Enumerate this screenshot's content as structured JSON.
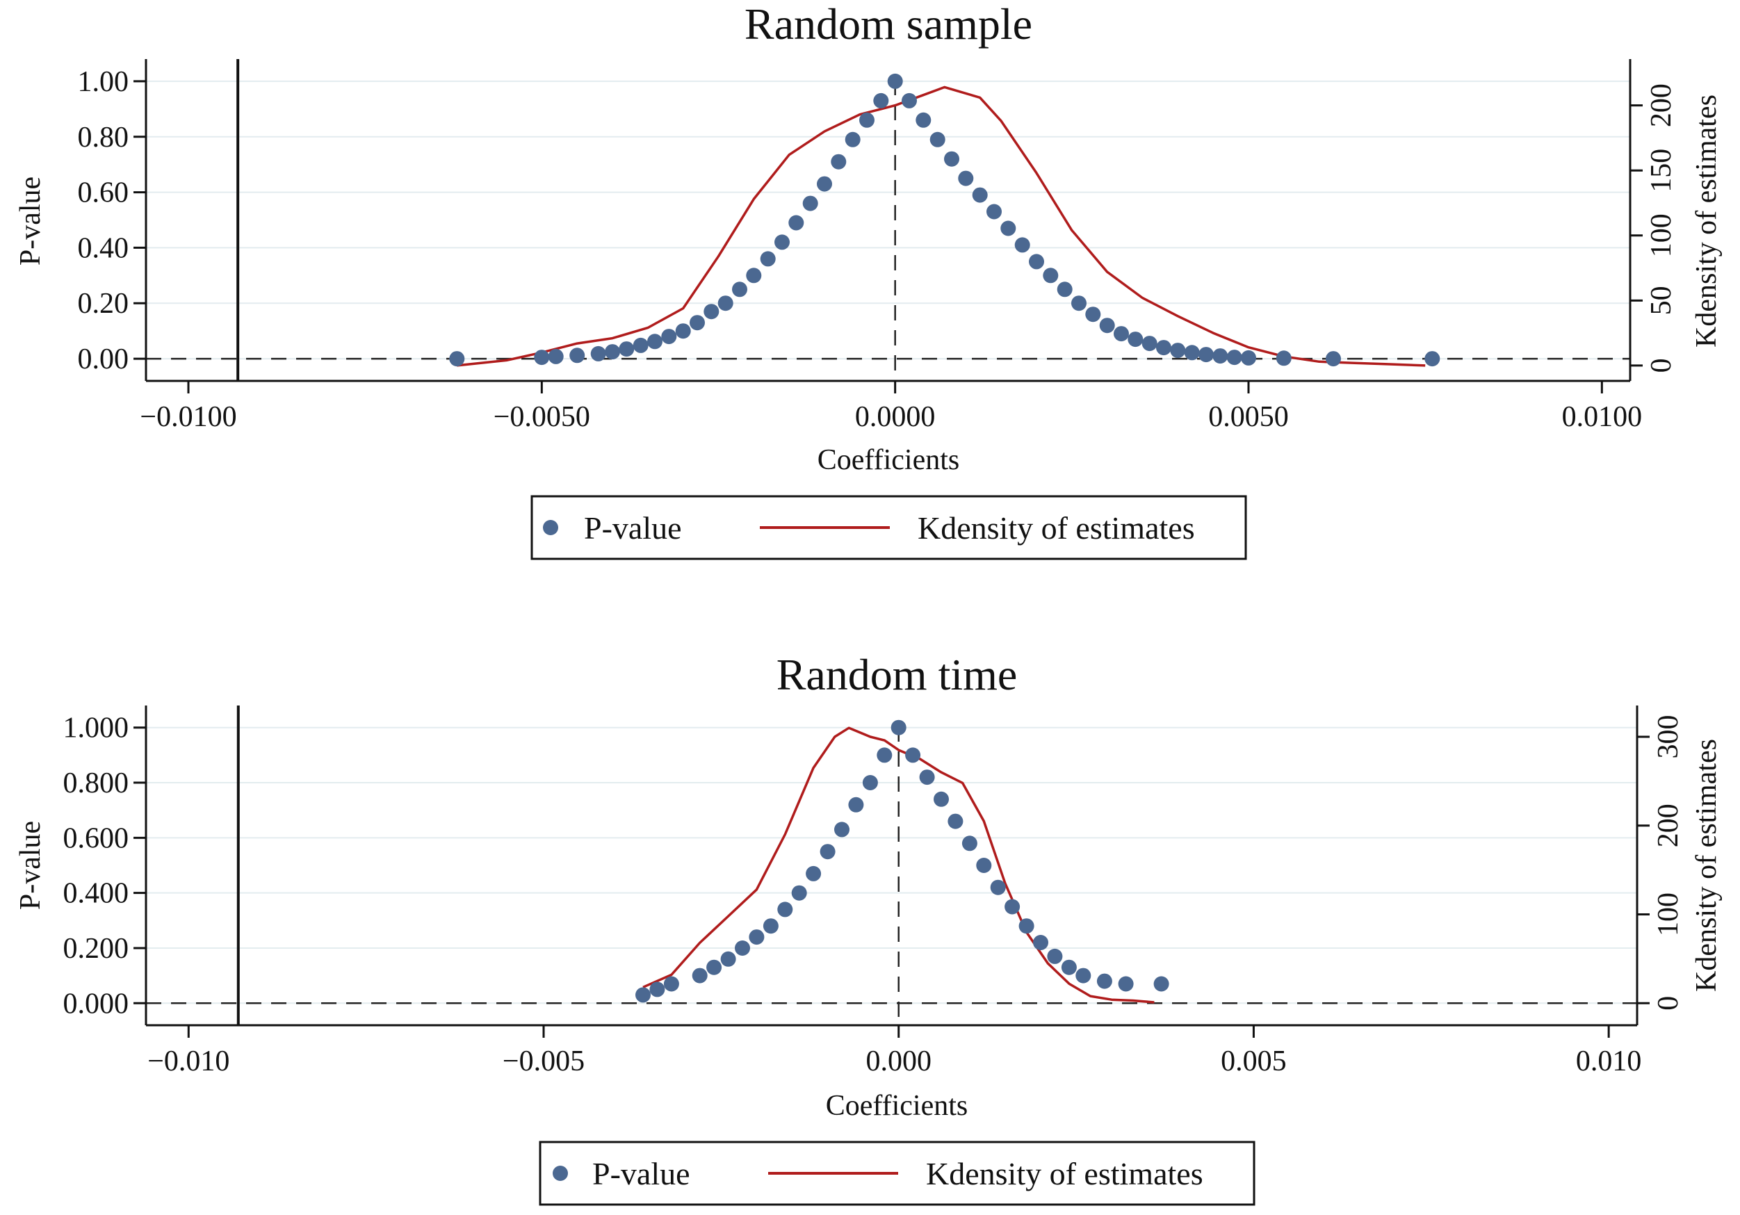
{
  "colors": {
    "pvalue": "#4b6891",
    "kdensity": "#b01c1c",
    "grid": "#e3ecef",
    "axis": "#111111"
  },
  "chart_data": [
    {
      "type": "scatter",
      "title": "Random sample",
      "xlabel": "Coefficients",
      "ylabel": "P-value",
      "y2label": "Kdensity of estimates",
      "xlim": [
        -0.0106,
        0.0104
      ],
      "ylim": [
        -0.08,
        1.08
      ],
      "y2lim": [
        -11.8,
        235.6
      ],
      "xticks": [
        -0.01,
        -0.005,
        0,
        0.005,
        0.01
      ],
      "xtick_labels": [
        "−0.0100",
        "−0.0050",
        "0.0000",
        "0.0050",
        "0.0100"
      ],
      "yticks": [
        0,
        0.2,
        0.4,
        0.6,
        0.8,
        1.0
      ],
      "ytick_labels": [
        "0.00",
        "0.20",
        "0.40",
        "0.60",
        "0.80",
        "1.00"
      ],
      "y2ticks": [
        0,
        50,
        100,
        150,
        200
      ],
      "y2tick_labels": [
        "0",
        "50",
        "100",
        "150",
        "200"
      ],
      "true_estimate_line": -0.0093,
      "reference_lines": {
        "x": 0,
        "y": 0
      },
      "legend": [
        "P-value",
        "Kdensity of estimates"
      ],
      "series": [
        {
          "name": "P-value",
          "kind": "scatter",
          "axis": "left",
          "points": [
            [
              -0.0062,
              0.0
            ],
            [
              -0.005,
              0.005
            ],
            [
              -0.0048,
              0.008
            ],
            [
              -0.0045,
              0.012
            ],
            [
              -0.0042,
              0.018
            ],
            [
              -0.004,
              0.025
            ],
            [
              -0.0038,
              0.035
            ],
            [
              -0.0036,
              0.048
            ],
            [
              -0.0034,
              0.062
            ],
            [
              -0.0032,
              0.08
            ],
            [
              -0.003,
              0.1
            ],
            [
              -0.0028,
              0.13
            ],
            [
              -0.0026,
              0.17
            ],
            [
              -0.0024,
              0.2
            ],
            [
              -0.0022,
              0.25
            ],
            [
              -0.002,
              0.3
            ],
            [
              -0.0018,
              0.36
            ],
            [
              -0.0016,
              0.42
            ],
            [
              -0.0014,
              0.49
            ],
            [
              -0.0012,
              0.56
            ],
            [
              -0.001,
              0.63
            ],
            [
              -0.0008,
              0.71
            ],
            [
              -0.0006,
              0.79
            ],
            [
              -0.0004,
              0.86
            ],
            [
              -0.0002,
              0.93
            ],
            [
              0.0,
              1.0
            ],
            [
              0.0002,
              0.93
            ],
            [
              0.0004,
              0.86
            ],
            [
              0.0006,
              0.79
            ],
            [
              0.0008,
              0.72
            ],
            [
              0.001,
              0.65
            ],
            [
              0.0012,
              0.59
            ],
            [
              0.0014,
              0.53
            ],
            [
              0.0016,
              0.47
            ],
            [
              0.0018,
              0.41
            ],
            [
              0.002,
              0.35
            ],
            [
              0.0022,
              0.3
            ],
            [
              0.0024,
              0.25
            ],
            [
              0.0026,
              0.2
            ],
            [
              0.0028,
              0.16
            ],
            [
              0.003,
              0.12
            ],
            [
              0.0032,
              0.09
            ],
            [
              0.0034,
              0.07
            ],
            [
              0.0036,
              0.055
            ],
            [
              0.0038,
              0.04
            ],
            [
              0.004,
              0.03
            ],
            [
              0.0042,
              0.022
            ],
            [
              0.0044,
              0.015
            ],
            [
              0.0046,
              0.01
            ],
            [
              0.0048,
              0.005
            ],
            [
              0.005,
              0.003
            ],
            [
              0.0055,
              0.002
            ],
            [
              0.0062,
              0.0
            ],
            [
              0.0076,
              0.0
            ]
          ]
        },
        {
          "name": "Kdensity of estimates",
          "kind": "line",
          "axis": "right",
          "points": [
            [
              -0.0062,
              0
            ],
            [
              -0.0055,
              4
            ],
            [
              -0.005,
              10
            ],
            [
              -0.0045,
              17
            ],
            [
              -0.004,
              21
            ],
            [
              -0.0035,
              29
            ],
            [
              -0.003,
              44
            ],
            [
              -0.0025,
              84
            ],
            [
              -0.002,
              128
            ],
            [
              -0.0015,
              162
            ],
            [
              -0.001,
              180
            ],
            [
              -0.0005,
              193
            ],
            [
              0.0,
              200
            ],
            [
              0.0004,
              208
            ],
            [
              0.0007,
              214
            ],
            [
              0.0012,
              206
            ],
            [
              0.0015,
              188
            ],
            [
              0.002,
              148
            ],
            [
              0.0025,
              104
            ],
            [
              0.003,
              72
            ],
            [
              0.0035,
              52
            ],
            [
              0.004,
              38
            ],
            [
              0.0045,
              25
            ],
            [
              0.005,
              14
            ],
            [
              0.0055,
              7
            ],
            [
              0.006,
              3
            ],
            [
              0.0065,
              2
            ],
            [
              0.007,
              1
            ],
            [
              0.0075,
              0
            ]
          ]
        }
      ]
    },
    {
      "type": "scatter",
      "title": "Random time",
      "xlabel": "Coefficients",
      "ylabel": "P-value",
      "y2label": "Kdensity of estimates",
      "xlim": [
        -0.0106,
        0.0104
      ],
      "ylim": [
        -0.08,
        1.08
      ],
      "y2lim": [
        -24.8,
        335.2
      ],
      "xticks": [
        -0.01,
        -0.005,
        0,
        0.005,
        0.01
      ],
      "xtick_labels": [
        "−0.010",
        "−0.005",
        "0.000",
        "0.005",
        "0.010"
      ],
      "yticks": [
        0,
        0.2,
        0.4,
        0.6,
        0.8,
        1.0
      ],
      "ytick_labels": [
        "0.000",
        "0.200",
        "0.400",
        "0.600",
        "0.800",
        "1.000"
      ],
      "y2ticks": [
        0,
        100,
        200,
        300
      ],
      "y2tick_labels": [
        "0",
        "100",
        "200",
        "300"
      ],
      "true_estimate_line": -0.0093,
      "reference_lines": {
        "x": 0,
        "y": 0
      },
      "legend": [
        "P-value",
        "Kdensity of estimates"
      ],
      "series": [
        {
          "name": "P-value",
          "kind": "scatter",
          "axis": "left",
          "points": [
            [
              -0.0036,
              0.03
            ],
            [
              -0.0034,
              0.05
            ],
            [
              -0.0032,
              0.07
            ],
            [
              -0.0028,
              0.1
            ],
            [
              -0.0026,
              0.13
            ],
            [
              -0.0024,
              0.16
            ],
            [
              -0.0022,
              0.2
            ],
            [
              -0.002,
              0.24
            ],
            [
              -0.0018,
              0.28
            ],
            [
              -0.0016,
              0.34
            ],
            [
              -0.0014,
              0.4
            ],
            [
              -0.0012,
              0.47
            ],
            [
              -0.001,
              0.55
            ],
            [
              -0.0008,
              0.63
            ],
            [
              -0.0006,
              0.72
            ],
            [
              -0.0004,
              0.8
            ],
            [
              -0.0002,
              0.9
            ],
            [
              0.0,
              1.0
            ],
            [
              0.0002,
              0.9
            ],
            [
              0.0004,
              0.82
            ],
            [
              0.0006,
              0.74
            ],
            [
              0.0008,
              0.66
            ],
            [
              0.001,
              0.58
            ],
            [
              0.0012,
              0.5
            ],
            [
              0.0014,
              0.42
            ],
            [
              0.0016,
              0.35
            ],
            [
              0.0018,
              0.28
            ],
            [
              0.002,
              0.22
            ],
            [
              0.0022,
              0.17
            ],
            [
              0.0024,
              0.13
            ],
            [
              0.0026,
              0.1
            ],
            [
              0.0029,
              0.08
            ],
            [
              0.0032,
              0.07
            ],
            [
              0.0037,
              0.07
            ]
          ]
        },
        {
          "name": "Kdensity of estimates",
          "kind": "line",
          "axis": "right",
          "points": [
            [
              -0.0036,
              18
            ],
            [
              -0.0032,
              32
            ],
            [
              -0.0028,
              68
            ],
            [
              -0.0024,
              98
            ],
            [
              -0.002,
              128
            ],
            [
              -0.0016,
              190
            ],
            [
              -0.0012,
              265
            ],
            [
              -0.0009,
              300
            ],
            [
              -0.0007,
              310
            ],
            [
              -0.0004,
              300
            ],
            [
              -0.0002,
              296
            ],
            [
              0.0,
              285
            ],
            [
              0.0003,
              275
            ],
            [
              0.0006,
              260
            ],
            [
              0.0009,
              248
            ],
            [
              0.0012,
              205
            ],
            [
              0.0015,
              135
            ],
            [
              0.0018,
              80
            ],
            [
              0.0021,
              45
            ],
            [
              0.0024,
              22
            ],
            [
              0.0027,
              8
            ],
            [
              0.003,
              4
            ],
            [
              0.0033,
              3
            ],
            [
              0.0036,
              1
            ]
          ]
        }
      ]
    }
  ]
}
